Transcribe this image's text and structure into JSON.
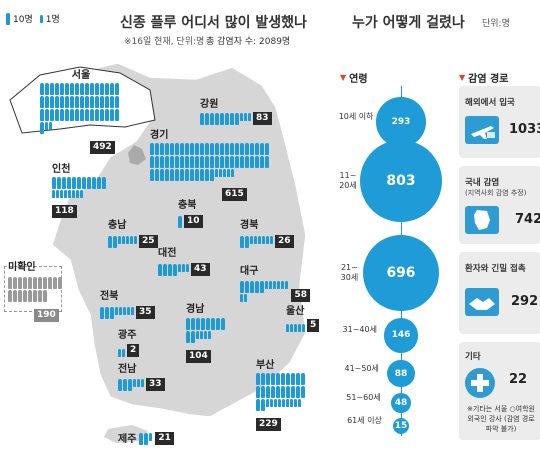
{
  "legend": {
    "ten": "10명",
    "one": "1명"
  },
  "left": {
    "title": "신종 플루 어디서 많이 발생했나",
    "subtitle": "※16일 현재, 단위:명",
    "total": "총 감염자 수: 2089명"
  },
  "right": {
    "title": "누가 어떻게 걸렸나",
    "unit": "단위:명"
  },
  "regions": {
    "seoul": {
      "name": "서울",
      "count": "492"
    },
    "gangwon": {
      "name": "강원",
      "count": "83"
    },
    "gyeonggi": {
      "name": "경기",
      "count": "615"
    },
    "incheon": {
      "name": "인천",
      "count": "118"
    },
    "chungbuk": {
      "name": "충북",
      "count": "10"
    },
    "chungnam": {
      "name": "충남",
      "count": "25"
    },
    "gyeongbuk": {
      "name": "경북",
      "count": "26"
    },
    "daejeon": {
      "name": "대전",
      "count": "43"
    },
    "unknown": {
      "name": "미확인",
      "count": "190"
    },
    "daegu": {
      "name": "대구",
      "count": "58"
    },
    "jeonbuk": {
      "name": "전북",
      "count": "35"
    },
    "ulsan": {
      "name": "울산",
      "count": "5"
    },
    "gwangju": {
      "name": "광주",
      "count": "2"
    },
    "gyeongnam": {
      "name": "경남",
      "count": "104"
    },
    "jeonnam": {
      "name": "전남",
      "count": "33"
    },
    "busan": {
      "name": "부산",
      "count": "229"
    },
    "jeju": {
      "name": "제주",
      "count": "21"
    }
  },
  "age": {
    "header": "연령",
    "groups": [
      {
        "label": "10세 이하",
        "value": "293"
      },
      {
        "label": "11~ 20세",
        "value": "803"
      },
      {
        "label": "21~ 30세",
        "value": "696"
      },
      {
        "label": "31~40세",
        "value": "146"
      },
      {
        "label": "41~50세",
        "value": "88"
      },
      {
        "label": "51~60세",
        "value": "48"
      },
      {
        "label": "61세 이상",
        "value": "15"
      }
    ]
  },
  "routes": {
    "header": "감염 경로",
    "items": [
      {
        "title": "해외에서 입국",
        "value": "1033",
        "icon": "airplane-icon"
      },
      {
        "title": "국내 감염",
        "note": "(지역사회 감염 추정)",
        "value": "742",
        "icon": "korea-map-icon"
      },
      {
        "title": "환자와 긴밀 접촉",
        "value": "292",
        "icon": "handshake-icon"
      },
      {
        "title": "기타",
        "value": "22",
        "icon": "medical-cross-icon"
      }
    ],
    "footnote": "※기타는 서울 ○여학원 외국인 강사 (감염 경로 파악 불가)"
  },
  "colors": {
    "accent": "#1f9bd7",
    "map": "#d9d9d9",
    "label_bg": "#2a2a2a",
    "header_red": "#e0452b"
  }
}
